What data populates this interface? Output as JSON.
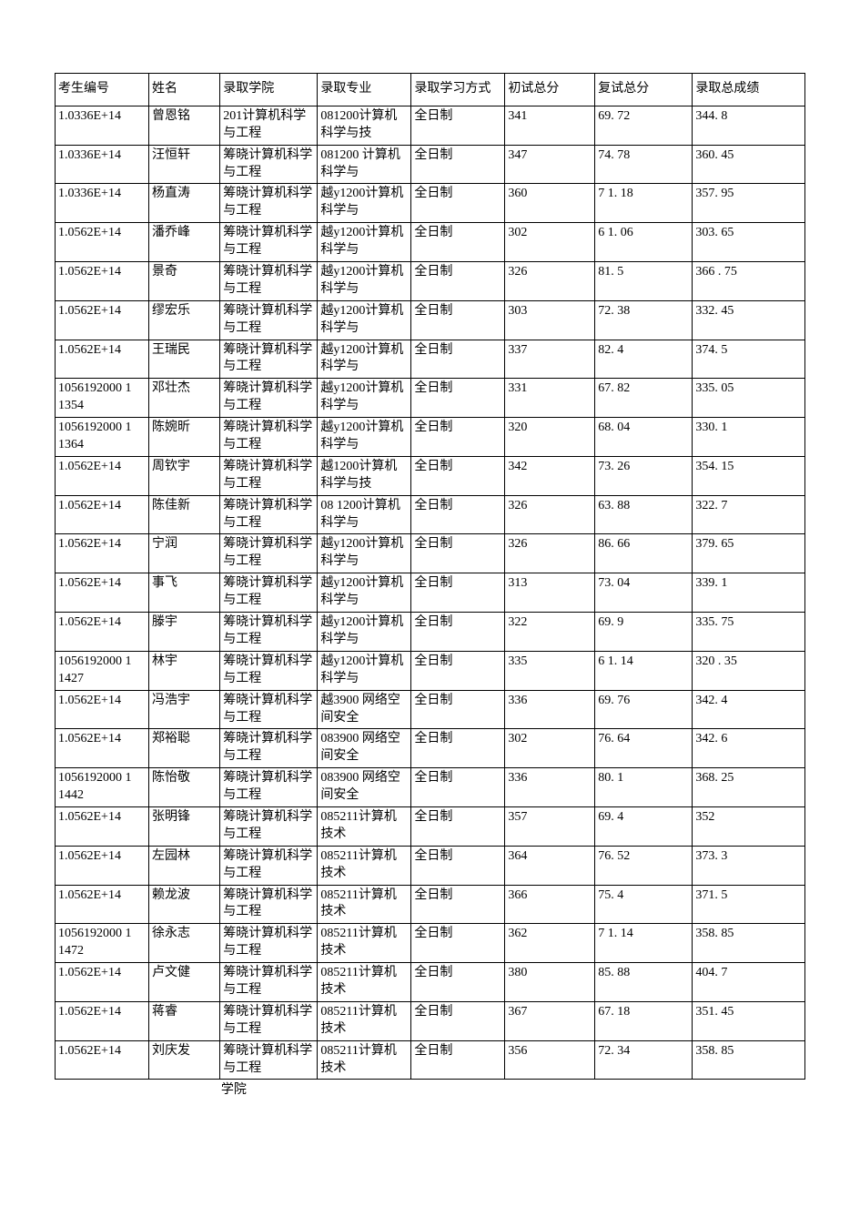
{
  "table": {
    "columns": [
      "考生编号",
      "姓名",
      "录取学院",
      "录取专业",
      "录取学习方式",
      "初试总分",
      "复试总分",
      "录取总成绩"
    ],
    "trailing_text": "学院",
    "rows": [
      [
        "1.0336E+14",
        "曾恩铭",
        "201计算机科学与工程",
        "081200计算机科学与技",
        "全日制",
        "341",
        "69. 72",
        "344. 8"
      ],
      [
        "1.0336E+14",
        "汪恒轩",
        "筹晓计算机科学与工程",
        "081200 计算机科学与",
        "全日制",
        "347",
        "74. 78",
        "360. 45"
      ],
      [
        "1.0336E+14",
        "杨直涛",
        "筹晓计算机科学与工程",
        "越y1200计算机科学与",
        "全日制",
        "360",
        "7 1. 18",
        "357. 95"
      ],
      [
        "1.0562E+14",
        "潘乔峰",
        "筹晓计算机科学与工程",
        "越y1200计算机科学与",
        "全日制",
        "302",
        "6 1. 06",
        "303. 65"
      ],
      [
        "1.0562E+14",
        "景奇",
        "筹晓计算机科学与工程",
        "越y1200计算机科学与",
        "全日制",
        "326",
        "81. 5",
        "366 . 75"
      ],
      [
        "1.0562E+14",
        "缪宏乐",
        "筹晓计算机科学与工程",
        "越y1200计算机科学与",
        "全日制",
        "303",
        "72. 38",
        "332. 45"
      ],
      [
        "1.0562E+14",
        "王瑞民",
        "筹晓计算机科学与工程",
        "越y1200计算机科学与",
        "全日制",
        "337",
        "82. 4",
        "374. 5"
      ],
      [
        "1056192000 1 1354",
        "邓壮杰",
        "筹晓计算机科学与工程",
        "越y1200计算机科学与",
        "全日制",
        "331",
        "67. 82",
        "335. 05"
      ],
      [
        "1056192000 1 1364",
        "陈婉昕",
        "筹晓计算机科学与工程",
        "越y1200计算机科学与",
        "全日制",
        "320",
        "68. 04",
        "330. 1"
      ],
      [
        "1.0562E+14",
        "周钦宇",
        "筹晓计算机科学与工程",
        "越1200计算机科学与技",
        "全日制",
        "342",
        "73. 26",
        "354. 15"
      ],
      [
        "1.0562E+14",
        "陈佳新",
        "筹晓计算机科学与工程",
        "08 1200计算机科学与",
        "全日制",
        "326",
        "63. 88",
        "322. 7"
      ],
      [
        "1.0562E+14",
        "宁润",
        "筹晓计算机科学与工程",
        "越y1200计算机科学与",
        "全日制",
        "326",
        "86. 66",
        "379. 65"
      ],
      [
        "1.0562E+14",
        "事飞",
        "筹晓计算机科学与工程",
        "越y1200计算机科学与",
        "全日制",
        "313",
        "73. 04",
        "339. 1"
      ],
      [
        "1.0562E+14",
        "滕宇",
        "筹晓计算机科学与工程",
        "越y1200计算机科学与",
        "全日制",
        "322",
        "69. 9",
        "335. 75"
      ],
      [
        "1056192000 1 1427",
        "林宇",
        "筹晓计算机科学与工程",
        "越y1200计算机科学与",
        "全日制",
        "335",
        "6 1. 14",
        "320 . 35"
      ],
      [
        "1.0562E+14",
        "冯浩宇",
        "筹晓计算机科学与工程",
        "越3900 网络空间安全",
        "全日制",
        "336",
        "69. 76",
        "342. 4"
      ],
      [
        "1.0562E+14",
        "郑裕聪",
        "筹晓计算机科学与工程",
        "083900 网络空间安全",
        "全日制",
        "302",
        "76. 64",
        "342. 6"
      ],
      [
        "1056192000 1 1442",
        "陈怡敬",
        "筹晓计算机科学与工程",
        "083900 网络空间安全",
        "全日制",
        "336",
        "80. 1",
        "368. 25"
      ],
      [
        "1.0562E+14",
        "张明锋",
        "筹晓计算机科学与工程",
        "085211计算机技术",
        "全日制",
        "357",
        "69. 4",
        "352"
      ],
      [
        "1.0562E+14",
        "左园林",
        "筹晓计算机科学与工程",
        "085211计算机技术",
        "全日制",
        "364",
        "76. 52",
        "373. 3"
      ],
      [
        "1.0562E+14",
        "赖龙波",
        "筹晓计算机科学与工程",
        "085211计算机技术",
        "全日制",
        "366",
        "75. 4",
        "371. 5"
      ],
      [
        "1056192000 1 1472",
        "徐永志",
        "筹晓计算机科学与工程",
        "085211计算机技术",
        "全日制",
        "362",
        "7 1. 14",
        "358. 85"
      ],
      [
        "1.0562E+14",
        "卢文健",
        "筹晓计算机科学与工程",
        "085211计算机技术",
        "全日制",
        "380",
        "85. 88",
        "404. 7"
      ],
      [
        "1.0562E+14",
        "蒋睿",
        "筹晓计算机科学与工程",
        "085211计算机技术",
        "全日制",
        "367",
        "67. 18",
        "351. 45"
      ],
      [
        "1.0562E+14",
        "刘庆发",
        "筹晓计算机科学与工程",
        "085211计算机技术",
        "全日制",
        "356",
        "72. 34",
        "358. 85"
      ]
    ]
  }
}
